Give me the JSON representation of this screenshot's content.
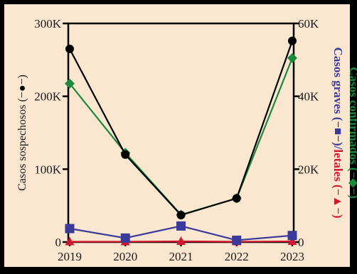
{
  "chart_data": {
    "type": "line",
    "categories": [
      "2019",
      "2020",
      "2021",
      "2022",
      "2023"
    ],
    "left_axis": {
      "ylim": [
        0,
        300000
      ],
      "ticks": [
        "0",
        "100K",
        "200K",
        "300K"
      ],
      "label_text": "Casos sospechosos (",
      "label_suffix": ")"
    },
    "right_axis": {
      "ylim": [
        0,
        60000
      ],
      "ticks": [
        "0",
        "20K",
        "40K",
        "60K"
      ],
      "label_line1": {
        "text": "Casos confirmados (",
        "suffix": ")"
      },
      "label_line2": {
        "text_a": "Casos graves (",
        "text_b": ")/",
        "text_c": "letales (",
        "text_d": ")"
      }
    },
    "series": [
      {
        "key": "sospechosos",
        "axis": "left",
        "color": "#000000",
        "marker": "circle",
        "values": [
          265000,
          120000,
          37000,
          60000,
          276000
        ]
      },
      {
        "key": "confirmados",
        "axis": "right",
        "color": "#1a8a3c",
        "marker": "diamond",
        "values": [
          43500,
          24500,
          7500,
          12000,
          50500
        ]
      },
      {
        "key": "graves",
        "axis": "right",
        "color": "#3a3a9a",
        "marker": "square",
        "values": [
          3700,
          1100,
          4400,
          500,
          1800
        ]
      },
      {
        "key": "letales",
        "axis": "right",
        "color": "#d01830",
        "marker": "triangle",
        "values": [
          100,
          100,
          200,
          100,
          200
        ]
      }
    ],
    "grid": false
  }
}
